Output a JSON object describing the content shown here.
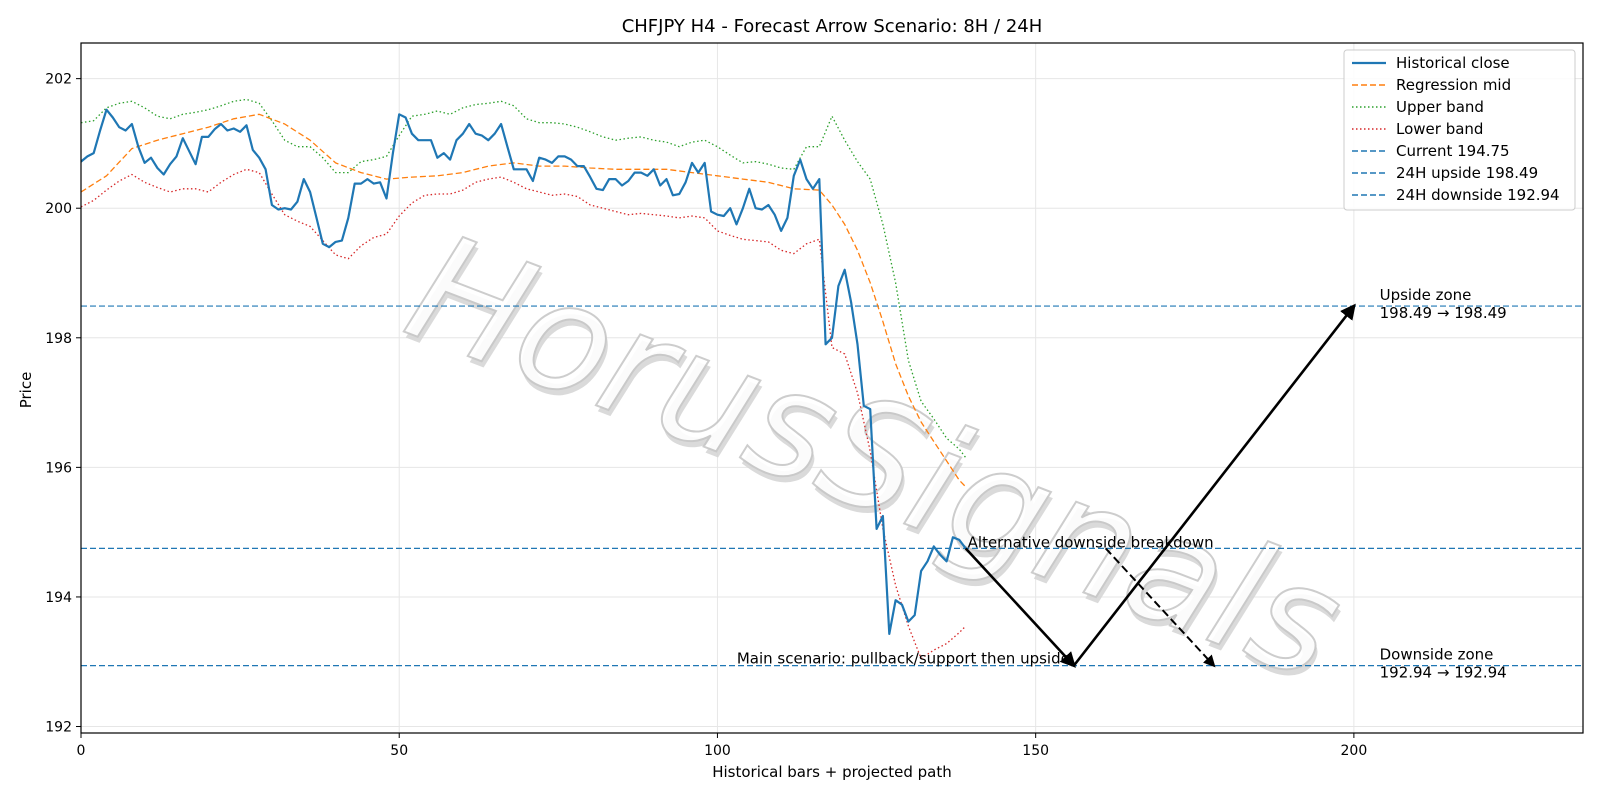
{
  "chart_data": {
    "type": "line",
    "title": "CHFJPY H4 - Forecast Arrow Scenario: 8H / 24H",
    "xlabel": "Historical bars + projected path",
    "ylabel": "Price",
    "xlim": [
      0,
      236
    ],
    "ylim": [
      191.9,
      202.55
    ],
    "x_ticks": [
      0,
      50,
      100,
      150,
      200
    ],
    "y_ticks": [
      192,
      194,
      196,
      198,
      200,
      202
    ],
    "grid": true,
    "legend_position": "top-right",
    "watermark": "HorusSignals",
    "series": [
      {
        "name": "Historical close",
        "style": "solid",
        "color": "#1f77b4",
        "x": [
          0,
          1,
          2,
          3,
          4,
          5,
          6,
          7,
          8,
          9,
          10,
          11,
          12,
          13,
          14,
          15,
          16,
          17,
          18,
          19,
          20,
          21,
          22,
          23,
          24,
          25,
          26,
          27,
          28,
          29,
          30,
          31,
          32,
          33,
          34,
          35,
          36,
          37,
          38,
          39,
          40,
          41,
          42,
          43,
          44,
          45,
          46,
          47,
          48,
          49,
          50,
          51,
          52,
          53,
          54,
          55,
          56,
          57,
          58,
          59,
          60,
          61,
          62,
          63,
          64,
          65,
          66,
          67,
          68,
          69,
          70,
          71,
          72,
          73,
          74,
          75,
          76,
          77,
          78,
          79,
          80,
          81,
          82,
          83,
          84,
          85,
          86,
          87,
          88,
          89,
          90,
          91,
          92,
          93,
          94,
          95,
          96,
          97,
          98,
          99,
          100,
          101,
          102,
          103,
          104,
          105,
          106,
          107,
          108,
          109,
          110,
          111,
          112,
          113,
          114,
          115,
          116,
          117,
          118,
          119,
          120,
          121,
          122,
          123,
          124,
          125,
          126,
          127,
          128,
          129,
          130,
          131,
          132,
          133,
          134,
          135,
          136,
          137,
          138,
          139
        ],
        "values": [
          200.72,
          200.8,
          200.85,
          201.2,
          201.52,
          201.4,
          201.25,
          201.2,
          201.3,
          200.95,
          200.7,
          200.78,
          200.62,
          200.52,
          200.68,
          200.8,
          201.08,
          200.88,
          200.68,
          201.1,
          201.1,
          201.22,
          201.3,
          201.2,
          201.23,
          201.18,
          201.28,
          200.9,
          200.78,
          200.6,
          200.05,
          199.98,
          200.0,
          199.98,
          200.1,
          200.45,
          200.25,
          199.85,
          199.45,
          199.4,
          199.48,
          199.5,
          199.85,
          200.38,
          200.38,
          200.45,
          200.38,
          200.4,
          200.15,
          200.85,
          201.45,
          201.4,
          201.15,
          201.05,
          201.05,
          201.05,
          200.78,
          200.85,
          200.75,
          201.05,
          201.15,
          201.3,
          201.15,
          201.12,
          201.05,
          201.15,
          201.3,
          200.95,
          200.6,
          200.6,
          200.6,
          200.42,
          200.78,
          200.75,
          200.7,
          200.8,
          200.8,
          200.75,
          200.65,
          200.65,
          200.48,
          200.3,
          200.28,
          200.45,
          200.45,
          200.35,
          200.42,
          200.55,
          200.55,
          200.5,
          200.6,
          200.35,
          200.45,
          200.2,
          200.22,
          200.4,
          200.7,
          200.55,
          200.7,
          199.95,
          199.9,
          199.88,
          200.0,
          199.75,
          200.0,
          200.3,
          200.0,
          199.98,
          200.05,
          199.9,
          199.65,
          199.85,
          200.5,
          200.75,
          200.45,
          200.3,
          200.45,
          197.9,
          198.0,
          198.8,
          199.05,
          198.55,
          197.9,
          196.95,
          196.9,
          195.05,
          195.25,
          193.43,
          193.95,
          193.88,
          193.62,
          193.72,
          194.4,
          194.55,
          194.78,
          194.65,
          194.55,
          194.92,
          194.88,
          194.75
        ]
      },
      {
        "name": "Regression mid",
        "style": "dashed",
        "color": "#ff7f0e",
        "x": [
          0,
          4,
          8,
          12,
          16,
          20,
          24,
          28,
          32,
          36,
          40,
          44,
          48,
          52,
          56,
          60,
          64,
          68,
          72,
          76,
          80,
          84,
          88,
          92,
          96,
          100,
          104,
          108,
          112,
          116,
          118,
          120,
          122,
          124,
          126,
          128,
          130,
          132,
          134,
          136,
          138,
          139
        ],
        "values": [
          200.25,
          200.5,
          200.92,
          201.05,
          201.15,
          201.25,
          201.38,
          201.45,
          201.3,
          201.05,
          200.7,
          200.55,
          200.45,
          200.48,
          200.5,
          200.55,
          200.65,
          200.7,
          200.65,
          200.65,
          200.62,
          200.6,
          200.6,
          200.6,
          200.55,
          200.5,
          200.45,
          200.4,
          200.3,
          200.28,
          200.05,
          199.75,
          199.35,
          198.85,
          198.25,
          197.6,
          197.1,
          196.7,
          196.4,
          196.1,
          195.8,
          195.7
        ]
      },
      {
        "name": "Upper band",
        "style": "dotted",
        "color": "#2ca02c",
        "x": [
          0,
          2,
          4,
          6,
          8,
          10,
          12,
          14,
          16,
          18,
          20,
          22,
          24,
          26,
          28,
          30,
          32,
          34,
          36,
          38,
          40,
          42,
          44,
          46,
          48,
          50,
          52,
          54,
          56,
          58,
          60,
          62,
          64,
          66,
          68,
          70,
          72,
          74,
          76,
          78,
          80,
          82,
          84,
          86,
          88,
          90,
          92,
          94,
          96,
          98,
          100,
          102,
          104,
          106,
          108,
          110,
          112,
          114,
          116,
          118,
          120,
          122,
          124,
          126,
          128,
          130,
          132,
          134,
          136,
          138,
          139
        ],
        "values": [
          201.32,
          201.35,
          201.55,
          201.62,
          201.65,
          201.55,
          201.42,
          201.38,
          201.45,
          201.48,
          201.52,
          201.58,
          201.65,
          201.68,
          201.62,
          201.35,
          201.05,
          200.95,
          200.95,
          200.78,
          200.55,
          200.55,
          200.72,
          200.75,
          200.8,
          201.12,
          201.42,
          201.45,
          201.5,
          201.45,
          201.55,
          201.6,
          201.62,
          201.65,
          201.58,
          201.38,
          201.32,
          201.32,
          201.3,
          201.25,
          201.18,
          201.1,
          201.05,
          201.08,
          201.1,
          201.05,
          201.02,
          200.95,
          201.02,
          201.05,
          200.95,
          200.82,
          200.7,
          200.72,
          200.68,
          200.62,
          200.6,
          200.95,
          200.95,
          201.42,
          201.05,
          200.72,
          200.45,
          199.75,
          198.85,
          197.65,
          197.02,
          196.75,
          196.45,
          196.28,
          196.15
        ]
      },
      {
        "name": "Lower band",
        "style": "dotted",
        "color": "#d62728",
        "x": [
          0,
          2,
          4,
          6,
          8,
          10,
          12,
          14,
          16,
          18,
          20,
          22,
          24,
          26,
          28,
          30,
          32,
          34,
          36,
          38,
          40,
          42,
          44,
          46,
          48,
          50,
          52,
          54,
          56,
          58,
          60,
          62,
          64,
          66,
          68,
          70,
          72,
          74,
          76,
          78,
          80,
          82,
          84,
          86,
          88,
          90,
          92,
          94,
          96,
          98,
          100,
          102,
          104,
          106,
          108,
          110,
          112,
          114,
          116,
          118,
          120,
          122,
          124,
          126,
          128,
          130,
          132,
          134,
          136,
          138,
          139
        ],
        "values": [
          200.02,
          200.12,
          200.28,
          200.42,
          200.52,
          200.4,
          200.32,
          200.25,
          200.3,
          200.3,
          200.25,
          200.4,
          200.52,
          200.6,
          200.55,
          200.22,
          199.9,
          199.8,
          199.72,
          199.5,
          199.28,
          199.22,
          199.42,
          199.55,
          199.6,
          199.88,
          200.08,
          200.2,
          200.22,
          200.22,
          200.28,
          200.4,
          200.45,
          200.48,
          200.4,
          200.3,
          200.25,
          200.2,
          200.22,
          200.18,
          200.05,
          200.0,
          199.95,
          199.9,
          199.92,
          199.9,
          199.88,
          199.85,
          199.88,
          199.85,
          199.65,
          199.58,
          199.52,
          199.5,
          199.48,
          199.35,
          199.3,
          199.45,
          199.52,
          197.85,
          197.75,
          197.15,
          196.25,
          195.05,
          194.18,
          193.55,
          193.05,
          193.18,
          193.28,
          193.45,
          193.55
        ]
      }
    ],
    "hlines": [
      {
        "name": "Current 194.75",
        "y": 194.75,
        "color": "#1f77b4",
        "style": "dashed"
      },
      {
        "name": "24H upside 198.49",
        "y": 198.49,
        "color": "#1f77b4",
        "style": "dashed"
      },
      {
        "name": "24H downside 192.94",
        "y": 192.94,
        "color": "#1f77b4",
        "style": "dashed"
      }
    ],
    "arrows": [
      {
        "label": "main-down",
        "from": [
          139,
          194.75
        ],
        "to": [
          156,
          192.94
        ],
        "style": "solid"
      },
      {
        "label": "main-up",
        "from": [
          156,
          192.94
        ],
        "to": [
          200,
          198.49
        ],
        "style": "solid"
      },
      {
        "label": "alt-down",
        "from": [
          161,
          194.75
        ],
        "to": [
          178,
          192.94
        ],
        "style": "dashed"
      }
    ],
    "annotations": [
      {
        "text": "Main scenario: pullback/support then upside",
        "x": 156,
        "y": 192.94,
        "anchor": "end"
      },
      {
        "text": "Alternative downside breakdown",
        "x": 139,
        "y": 194.75,
        "anchor": "start"
      },
      {
        "text": "Upside zone",
        "x": 202,
        "y": 198.49,
        "anchor": "start"
      },
      {
        "text": "198.49 → 198.49",
        "x": 202,
        "y": 198.49,
        "anchor": "start"
      },
      {
        "text": "Downside zone",
        "x": 202,
        "y": 192.94,
        "anchor": "start"
      },
      {
        "text": "192.94 → 192.94",
        "x": 202,
        "y": 192.94,
        "anchor": "start"
      }
    ]
  }
}
